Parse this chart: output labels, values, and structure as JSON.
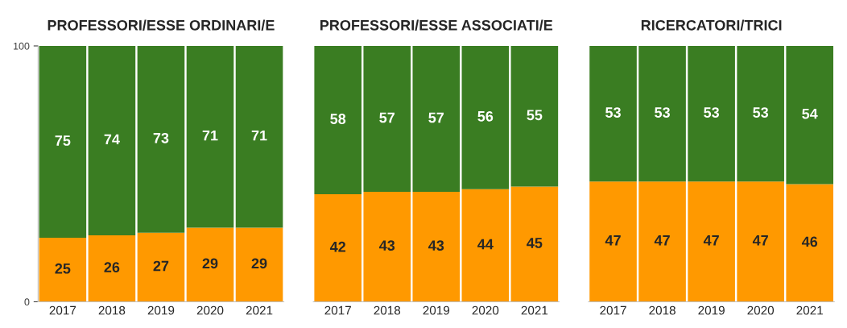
{
  "chart_data": [
    {
      "type": "bar",
      "title": "PROFESSORI/ESSE ORDINARI/E",
      "stacked": true,
      "data_labels": true,
      "categories": [
        "2017",
        "2018",
        "2019",
        "2020",
        "2021"
      ],
      "ylim": [
        0,
        100
      ],
      "yticks": [
        0,
        100
      ],
      "series": [
        {
          "color": "#ff9900",
          "values": [
            25,
            26,
            27,
            29,
            29
          ]
        },
        {
          "color": "#3a7d22",
          "values": [
            75,
            74,
            73,
            71,
            71
          ]
        }
      ]
    },
    {
      "type": "bar",
      "title": "PROFESSORI/ESSE ASSOCIATI/E",
      "stacked": true,
      "data_labels": true,
      "tick_labels": "x",
      "categories": [
        "2017",
        "2018",
        "2019",
        "2020",
        "2021"
      ],
      "ylim": [
        0,
        100
      ],
      "series": [
        {
          "color": "#ff9900",
          "values": [
            42,
            43,
            43,
            44,
            45
          ]
        },
        {
          "color": "#3a7d22",
          "values": [
            58,
            57,
            57,
            56,
            55
          ]
        }
      ]
    },
    {
      "type": "bar",
      "title": "RICERCATORI/TRICI",
      "stacked": true,
      "data_labels": true,
      "tick_labels": "x",
      "categories": [
        "2017",
        "2018",
        "2019",
        "2020",
        "2021"
      ],
      "ylim": [
        0,
        100
      ],
      "series": [
        {
          "color": "#ff9900",
          "values": [
            47,
            47,
            47,
            47,
            46
          ]
        },
        {
          "color": "#3a7d22",
          "values": [
            53,
            53,
            53,
            53,
            54
          ]
        }
      ]
    }
  ]
}
